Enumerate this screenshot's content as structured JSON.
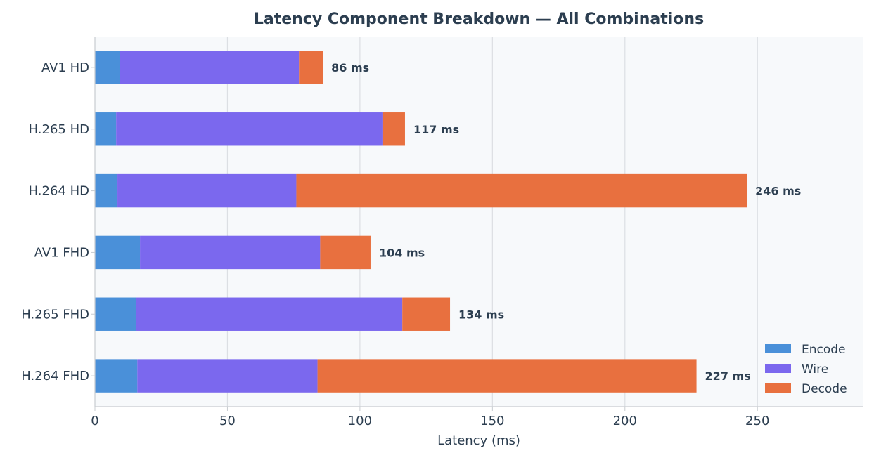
{
  "chart_data": {
    "type": "bar",
    "orientation": "horizontal",
    "stacked": true,
    "title": "Latency Component Breakdown — All Combinations",
    "xlabel": "Latency (ms)",
    "ylabel": "",
    "xlim": [
      0,
      290
    ],
    "xticks": [
      0,
      50,
      100,
      150,
      200,
      250
    ],
    "grid": "vertical",
    "legend_position": "bottom-right",
    "categories": [
      "AV1  HD",
      "H.265  HD",
      "H.264  HD",
      "AV1  FHD",
      "H.265  FHD",
      "H.264  FHD"
    ],
    "series": [
      {
        "name": "Encode",
        "color": "#4a90d9",
        "values": [
          9.5,
          8,
          8.5,
          17,
          15.5,
          16
        ]
      },
      {
        "name": "Wire",
        "color": "#7b68ee",
        "values": [
          67.5,
          100.5,
          67.5,
          68,
          100.5,
          68
        ]
      },
      {
        "name": "Decode",
        "color": "#e8703f",
        "values": [
          9,
          8.5,
          170,
          19,
          18,
          143
        ]
      }
    ],
    "total_labels": [
      "86 ms",
      "117 ms",
      "246 ms",
      "104 ms",
      "134 ms",
      "227 ms"
    ]
  }
}
